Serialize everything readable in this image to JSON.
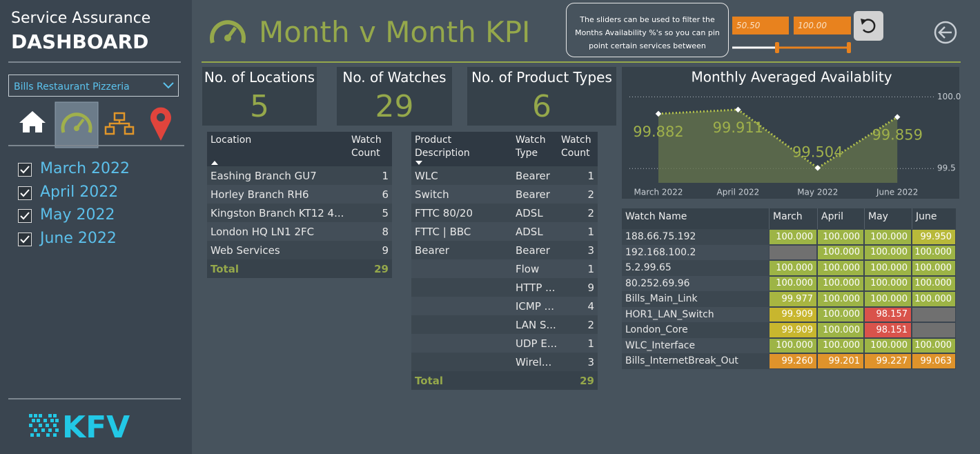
{
  "sidebar": {
    "title": "Service Assurance",
    "heading": "DASHBOARD",
    "selected_restaurant": "Bills Restaurant Pizzeria",
    "month_filters": [
      "March 2022",
      "April 2022",
      "May 2022",
      "June 2022"
    ],
    "logo": "KFV"
  },
  "header": {
    "title": "Month v Month KPI",
    "help_text": "The sliders can be used to filter the Months Availability %'s so you can pin point certain services between",
    "slider_min": "50.50",
    "slider_max": "100.00"
  },
  "kpis": [
    {
      "label": "No. of Locations",
      "value": 5
    },
    {
      "label": "No. of Watches",
      "value": 29
    },
    {
      "label": "No. of Product Types",
      "value": 6
    }
  ],
  "locations_table": {
    "columns": [
      "Location",
      "Watch Count"
    ],
    "rows": [
      [
        "Eashing Branch GU7",
        1
      ],
      [
        "Horley Branch RH6",
        6
      ],
      [
        "Kingston Branch KT12 4...",
        5
      ],
      [
        "London HQ LN1 2FC",
        8
      ],
      [
        "Web Services",
        9
      ]
    ],
    "total_label": "Total",
    "total_value": 29
  },
  "products_table": {
    "columns": [
      "Product Description",
      "Watch Type",
      "Watch Count"
    ],
    "rows": [
      [
        "WLC",
        "Bearer",
        1
      ],
      [
        "Switch",
        "Bearer",
        2
      ],
      [
        "FTTC 80/20",
        "ADSL",
        2
      ],
      [
        "FTTC | BBC",
        "ADSL",
        1
      ],
      [
        "Bearer",
        "Bearer",
        3
      ],
      [
        null,
        "Flow",
        1
      ],
      [
        null,
        "HTTP ...",
        9
      ],
      [
        null,
        "ICMP ...",
        4
      ],
      [
        null,
        "LAN S...",
        2
      ],
      [
        null,
        "UDP E...",
        1
      ],
      [
        null,
        "Wirel...",
        3
      ]
    ],
    "total_label": "Total",
    "total_value": 29
  },
  "chart_data": {
    "type": "line",
    "title": "Monthly Averaged Availablity",
    "categories": [
      "March 2022",
      "April 2022",
      "May 2022",
      "June 2022"
    ],
    "values": [
      99.882,
      99.911,
      99.504,
      99.859
    ],
    "color": "#b4c24c",
    "area_color": "#66744c",
    "ylim": [
      99.4,
      100.05
    ],
    "yticks": [
      99.5,
      {
        "value": 100,
        "label": "100.0"
      }
    ],
    "grid": true
  },
  "watch_table": {
    "columns": [
      "Watch Name",
      "March",
      "April",
      "May",
      "June"
    ],
    "rows": [
      {
        "name": "188.66.75.192",
        "values": [
          "100.000",
          "100.000",
          "100.000",
          "99.950"
        ],
        "colors": [
          "#9db446",
          "#9db446",
          "#9db446",
          "#b8b93a"
        ]
      },
      {
        "name": "192.168.100.2",
        "values": [
          null,
          "100.000",
          "100.000",
          "100.000"
        ],
        "colors": [
          "#707070",
          "#9db446",
          "#9db446",
          "#9db446"
        ]
      },
      {
        "name": "5.2.99.65",
        "values": [
          "100.000",
          "100.000",
          "100.000",
          "100.000"
        ],
        "colors": [
          "#9db446",
          "#9db446",
          "#9db446",
          "#9db446"
        ]
      },
      {
        "name": "80.252.69.96",
        "values": [
          "100.000",
          "100.000",
          "100.000",
          "100.000"
        ],
        "colors": [
          "#9db446",
          "#9db446",
          "#9db446",
          "#9db446"
        ]
      },
      {
        "name": "Bills_Main_Link",
        "values": [
          "99.977",
          "100.000",
          "100.000",
          "100.000"
        ],
        "colors": [
          "#a8b641",
          "#9db446",
          "#9db446",
          "#9db446"
        ]
      },
      {
        "name": "HOR1_LAN_Switch",
        "values": [
          "99.909",
          "100.000",
          "98.157",
          null
        ],
        "colors": [
          "#c8b62e",
          "#9db446",
          "#d9534b",
          "#707070"
        ]
      },
      {
        "name": "London_Core",
        "values": [
          "99.909",
          "100.000",
          "98.151",
          null
        ],
        "colors": [
          "#c8b62e",
          "#9db446",
          "#d9534b",
          "#707070"
        ]
      },
      {
        "name": "WLC_Interface",
        "values": [
          "100.000",
          "100.000",
          "100.000",
          "100.000"
        ],
        "colors": [
          "#9db446",
          "#9db446",
          "#9db446",
          "#9db446"
        ]
      },
      {
        "name": "Bills_InternetBreak_Out",
        "values": [
          "99.260",
          "99.201",
          "99.227",
          "99.063"
        ],
        "colors": [
          "#df932b",
          "#df932b",
          "#df932b",
          "#df932b"
        ]
      }
    ]
  }
}
